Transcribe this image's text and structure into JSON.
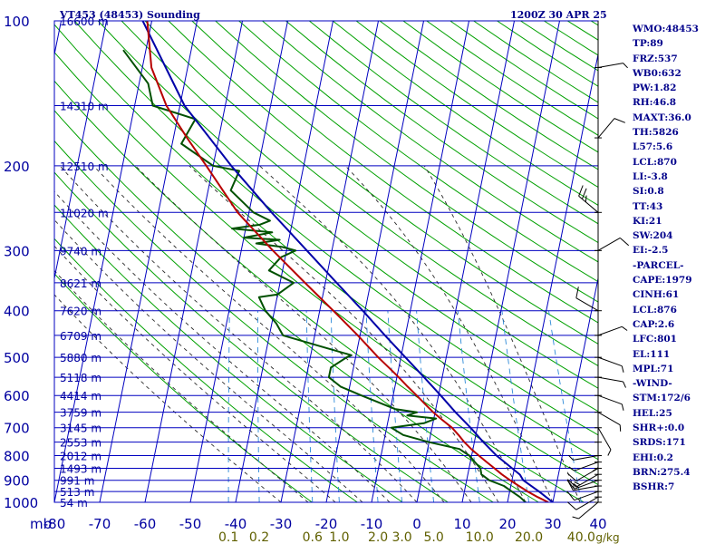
{
  "header": {
    "station": "VT453 (48453) Sounding",
    "time": "1200Z 30 APR 25"
  },
  "indices": [
    "WMO:48453",
    "TP:89",
    "FRZ:537",
    "WB0:632",
    "PW:1.82",
    "RH:46.8",
    "MAXT:36.0",
    "TH:5826",
    "L57:5.6",
    "LCL:870",
    "LI:-3.8",
    "SI:0.8",
    "TT:43",
    "KI:21",
    "SW:204",
    "EI:-2.5",
    "-PARCEL-",
    "CAPE:1979",
    "CINH:61",
    "LCL:876",
    "CAP:2.6",
    "LFC:801",
    "EL:111",
    "MPL:71",
    "-WIND-",
    "STM:172/6",
    "HEL:25",
    "SHR+:0.0",
    "SRDS:171",
    "EHI:0.2",
    "BRN:275.4",
    "BSHR:7"
  ],
  "colors": {
    "background": "#ffffff",
    "isobar_isotherm_grid": "#0000c0",
    "dry_adiabat": "#00a000",
    "moist_adiabat": "#2a2a2a",
    "mixing_ratio": "#2d8ad8",
    "temperature": "#b80000",
    "dewpoint": "#005000",
    "parcel": "#0000a8",
    "labels": "#0000a0",
    "mixing_ratio_labels": "#606000",
    "text": "#00008b"
  },
  "chart_data": {
    "type": "skew-t log-p sounding",
    "y_axis_unit": "mb",
    "x_axis_unit": "°C",
    "pressure_range": [
      1000,
      100
    ],
    "temperature_range": [
      -80,
      40
    ],
    "pressure_ticks": [
      100,
      200,
      300,
      400,
      500,
      600,
      700,
      800,
      900,
      1000
    ],
    "temperature_ticks": [
      -80,
      -70,
      -60,
      -50,
      -40,
      -30,
      -20,
      -10,
      0,
      10,
      20,
      30,
      40
    ],
    "height_labels": [
      {
        "p": 100,
        "label": "16600 m"
      },
      {
        "p": 150,
        "label": "14310 m"
      },
      {
        "p": 200,
        "label": "12510 m"
      },
      {
        "p": 250,
        "label": "11020 m"
      },
      {
        "p": 300,
        "label": "9740 m"
      },
      {
        "p": 350,
        "label": "8621 m"
      },
      {
        "p": 400,
        "label": "7620 m"
      },
      {
        "p": 450,
        "label": "6709 m"
      },
      {
        "p": 500,
        "label": "5880 m"
      },
      {
        "p": 550,
        "label": "5118 m"
      },
      {
        "p": 600,
        "label": "4414 m"
      },
      {
        "p": 650,
        "label": "3759 m"
      },
      {
        "p": 700,
        "label": "3145 m"
      },
      {
        "p": 750,
        "label": "2553 m"
      },
      {
        "p": 800,
        "label": "2012 m"
      },
      {
        "p": 850,
        "label": "1493 m"
      },
      {
        "p": 900,
        "label": "991 m"
      },
      {
        "p": 950,
        "label": "513 m"
      },
      {
        "p": 1000,
        "label": "54 m"
      }
    ],
    "mixing_ratio_labels": [
      "0.1",
      "0.2",
      "0.6",
      "1.0",
      "2.0",
      "3.0",
      "5.0",
      "10.0",
      "20.0",
      "40.0"
    ],
    "mixing_ratio_unit": "g/kg",
    "mixing_ratio_values": [
      0.1,
      0.2,
      0.6,
      1.0,
      2.0,
      3.0,
      5.0,
      10.0,
      20.0,
      40.0
    ],
    "temperature_profile": [
      {
        "p": 1000,
        "t": 29.0
      },
      {
        "p": 975,
        "t": 26.4
      },
      {
        "p": 950,
        "t": 24.0
      },
      {
        "p": 925,
        "t": 21.8
      },
      {
        "p": 900,
        "t": 19.6
      },
      {
        "p": 875,
        "t": 17.5
      },
      {
        "p": 850,
        "t": 15.6
      },
      {
        "p": 825,
        "t": 13.6
      },
      {
        "p": 800,
        "t": 11.6
      },
      {
        "p": 775,
        "t": 9.6
      },
      {
        "p": 750,
        "t": 7.8
      },
      {
        "p": 725,
        "t": 6.2
      },
      {
        "p": 700,
        "t": 4.4
      },
      {
        "p": 675,
        "t": 2.0
      },
      {
        "p": 650,
        "t": -0.4
      },
      {
        "p": 625,
        "t": -2.6
      },
      {
        "p": 600,
        "t": -4.8
      },
      {
        "p": 575,
        "t": -7.2
      },
      {
        "p": 550,
        "t": -9.6
      },
      {
        "p": 525,
        "t": -12.2
      },
      {
        "p": 500,
        "t": -15.0
      },
      {
        "p": 450,
        "t": -20.5
      },
      {
        "p": 400,
        "t": -27.0
      },
      {
        "p": 350,
        "t": -34.5
      },
      {
        "p": 300,
        "t": -43.0
      },
      {
        "p": 250,
        "t": -52.5
      },
      {
        "p": 200,
        "t": -61.5
      },
      {
        "p": 175,
        "t": -67.0
      },
      {
        "p": 150,
        "t": -73.0
      },
      {
        "p": 125,
        "t": -78.0
      },
      {
        "p": 100,
        "t": -81.0
      }
    ],
    "dewpoint_profile": [
      {
        "p": 1000,
        "td": 24.0
      },
      {
        "p": 975,
        "td": 22.5
      },
      {
        "p": 950,
        "td": 20.5
      },
      {
        "p": 925,
        "td": 18.5
      },
      {
        "p": 900,
        "td": 15.0
      },
      {
        "p": 875,
        "td": 13.0
      },
      {
        "p": 850,
        "td": 12.5
      },
      {
        "p": 825,
        "td": 11.0
      },
      {
        "p": 800,
        "td": 9.5
      },
      {
        "p": 775,
        "td": 7.0
      },
      {
        "p": 750,
        "td": 0.0
      },
      {
        "p": 725,
        "td": -6.0
      },
      {
        "p": 700,
        "td": -9.0
      },
      {
        "p": 685,
        "td": -2.0
      },
      {
        "p": 670,
        "td": 0.5
      },
      {
        "p": 660,
        "td": -6.0
      },
      {
        "p": 650,
        "td": -4.0
      },
      {
        "p": 640,
        "td": -9.0
      },
      {
        "p": 600,
        "td": -17.0
      },
      {
        "p": 575,
        "td": -22.0
      },
      {
        "p": 550,
        "td": -25.0
      },
      {
        "p": 525,
        "td": -25.0
      },
      {
        "p": 500,
        "td": -22.0
      },
      {
        "p": 495,
        "td": -21.0
      },
      {
        "p": 475,
        "td": -28.0
      },
      {
        "p": 450,
        "td": -37.0
      },
      {
        "p": 425,
        "td": -39.0
      },
      {
        "p": 400,
        "td": -42.0
      },
      {
        "p": 375,
        "td": -44.0
      },
      {
        "p": 370,
        "td": -40.0
      },
      {
        "p": 350,
        "td": -37.0
      },
      {
        "p": 330,
        "td": -43.0
      },
      {
        "p": 310,
        "td": -41.0
      },
      {
        "p": 300,
        "td": -38.0
      },
      {
        "p": 295,
        "td": -41.0
      },
      {
        "p": 290,
        "td": -47.0
      },
      {
        "p": 285,
        "td": -42.0
      },
      {
        "p": 282,
        "td": -50.0
      },
      {
        "p": 275,
        "td": -44.0
      },
      {
        "p": 270,
        "td": -53.0
      },
      {
        "p": 265,
        "td": -47.0
      },
      {
        "p": 260,
        "td": -45.0
      },
      {
        "p": 250,
        "td": -49.0
      },
      {
        "p": 225,
        "td": -55.0
      },
      {
        "p": 205,
        "td": -54.0
      },
      {
        "p": 200,
        "td": -60.0
      },
      {
        "p": 180,
        "td": -68.0
      },
      {
        "p": 160,
        "td": -66.0
      },
      {
        "p": 150,
        "td": -76.0
      },
      {
        "p": 135,
        "td": -78.0
      },
      {
        "p": 115,
        "td": -85.0
      }
    ],
    "parcel_profile": [
      {
        "p": 1000,
        "t": 30.0
      },
      {
        "p": 950,
        "t": 26.5
      },
      {
        "p": 900,
        "t": 22.5
      },
      {
        "p": 876,
        "t": 21.5
      },
      {
        "p": 850,
        "t": 19.5
      },
      {
        "p": 800,
        "t": 15.5
      },
      {
        "p": 750,
        "t": 12.0
      },
      {
        "p": 700,
        "t": 8.5
      },
      {
        "p": 650,
        "t": 4.5
      },
      {
        "p": 600,
        "t": 0.5
      },
      {
        "p": 550,
        "t": -4.0
      },
      {
        "p": 500,
        "t": -9.0
      },
      {
        "p": 450,
        "t": -14.5
      },
      {
        "p": 400,
        "t": -20.5
      },
      {
        "p": 350,
        "t": -27.5
      },
      {
        "p": 300,
        "t": -35.5
      },
      {
        "p": 250,
        "t": -45.0
      },
      {
        "p": 200,
        "t": -56.0
      },
      {
        "p": 150,
        "t": -69.0
      },
      {
        "p": 100,
        "t": -82.0
      }
    ],
    "wind_profile": [
      {
        "p": 1000,
        "dir": 230,
        "spd": 5
      },
      {
        "p": 975,
        "dir": 240,
        "spd": 10
      },
      {
        "p": 950,
        "dir": 250,
        "spd": 10
      },
      {
        "p": 925,
        "dir": 260,
        "spd": 10
      },
      {
        "p": 900,
        "dir": 250,
        "spd": 15
      },
      {
        "p": 875,
        "dir": 240,
        "spd": 15
      },
      {
        "p": 850,
        "dir": 240,
        "spd": 10
      },
      {
        "p": 825,
        "dir": 250,
        "spd": 5
      },
      {
        "p": 800,
        "dir": 260,
        "spd": 5
      },
      {
        "p": 750,
        "dir": 180,
        "spd": 5
      },
      {
        "p": 700,
        "dir": 150,
        "spd": 5
      },
      {
        "p": 650,
        "dir": 120,
        "spd": 5
      },
      {
        "p": 600,
        "dir": 110,
        "spd": 5
      },
      {
        "p": 550,
        "dir": 100,
        "spd": 5
      },
      {
        "p": 500,
        "dir": 110,
        "spd": 5
      },
      {
        "p": 450,
        "dir": 70,
        "spd": 5
      },
      {
        "p": 400,
        "dir": 300,
        "spd": 10
      },
      {
        "p": 300,
        "dir": 60,
        "spd": 10
      },
      {
        "p": 250,
        "dir": 310,
        "spd": 25
      },
      {
        "p": 175,
        "dir": 40,
        "spd": 10
      },
      {
        "p": 125,
        "dir": 80,
        "spd": 5
      }
    ]
  }
}
